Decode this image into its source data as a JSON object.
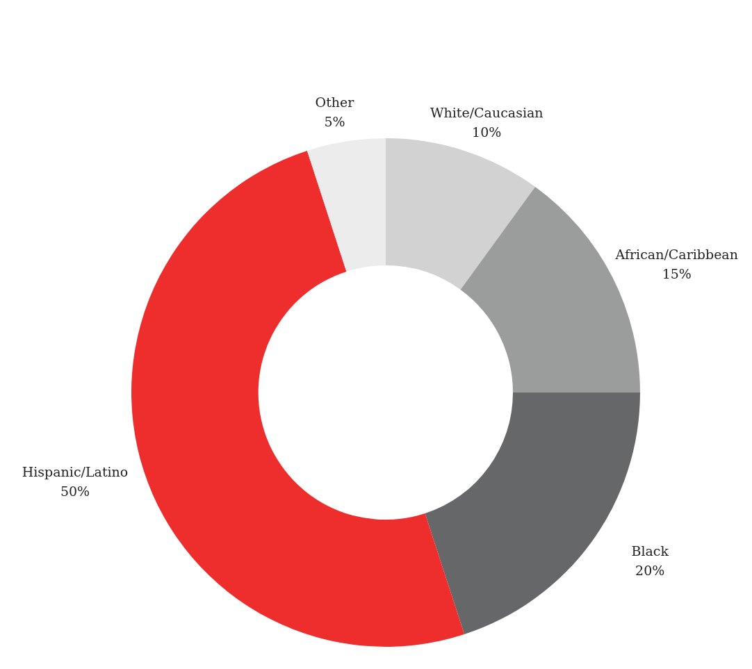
{
  "chart_data": {
    "type": "donut",
    "categories": [
      "White/Caucasian",
      "African/Caribbean",
      "Black",
      "Hispanic/Latino",
      "Other"
    ],
    "values": [
      10,
      15,
      20,
      50,
      5
    ],
    "colors": [
      "#d1d2d1",
      "#9b9d9d",
      "#666769",
      "#ee2d2d",
      "#ececec"
    ],
    "value_labels": [
      "10%",
      "15%",
      "20%",
      "50%",
      "5%"
    ]
  }
}
